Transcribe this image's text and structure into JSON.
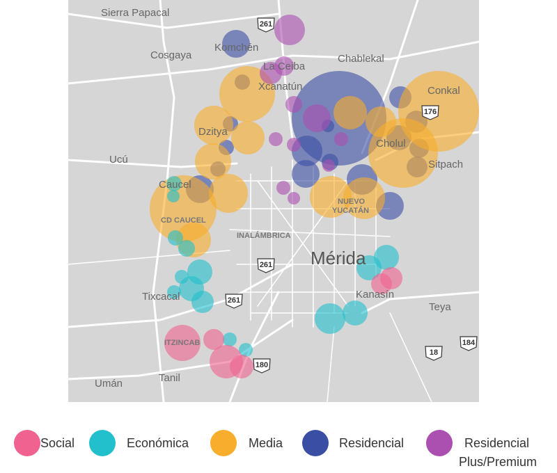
{
  "map": {
    "places": [
      {
        "label": "Sierra Papacal",
        "kind": "normal"
      },
      {
        "label": "Cosgaya",
        "kind": "normal"
      },
      {
        "label": "Komchén",
        "kind": "normal"
      },
      {
        "label": "Chablekal",
        "kind": "normal"
      },
      {
        "label": "La Ceiba",
        "kind": "normal"
      },
      {
        "label": "Xcanatún",
        "kind": "normal"
      },
      {
        "label": "Conkal",
        "kind": "normal"
      },
      {
        "label": "Dzitya",
        "kind": "normal"
      },
      {
        "label": "Ucú",
        "kind": "normal"
      },
      {
        "label": "Cholul",
        "kind": "normal"
      },
      {
        "label": "Sitpach",
        "kind": "normal"
      },
      {
        "label": "Caucel",
        "kind": "normal"
      },
      {
        "label": "NUEVO",
        "kind": "small"
      },
      {
        "label": "YUCATÁN",
        "kind": "small"
      },
      {
        "label": "CD CAUCEL",
        "kind": "small"
      },
      {
        "label": "INALÁMBRICA",
        "kind": "small"
      },
      {
        "label": "Mérida",
        "kind": "big"
      },
      {
        "label": "Kanasín",
        "kind": "normal"
      },
      {
        "label": "Teya",
        "kind": "normal"
      },
      {
        "label": "Tixcacal",
        "kind": "normal"
      },
      {
        "label": "ITZINCAB",
        "kind": "small"
      },
      {
        "label": "Umán",
        "kind": "normal"
      },
      {
        "label": "Tanil",
        "kind": "normal"
      }
    ],
    "shields": [
      "261",
      "176",
      "261",
      "261",
      "180",
      "18",
      "184"
    ],
    "legend": [
      {
        "name": "Social",
        "color": "#f0628f"
      },
      {
        "name": "Económica",
        "color": "#22c0cc"
      },
      {
        "name": "Media",
        "color": "#f8ad2c"
      },
      {
        "name": "Residencial",
        "color": "#3a4fa3"
      },
      {
        "name": "Residencial Plus/Premium",
        "color": "#ab4fb0"
      }
    ]
  }
}
